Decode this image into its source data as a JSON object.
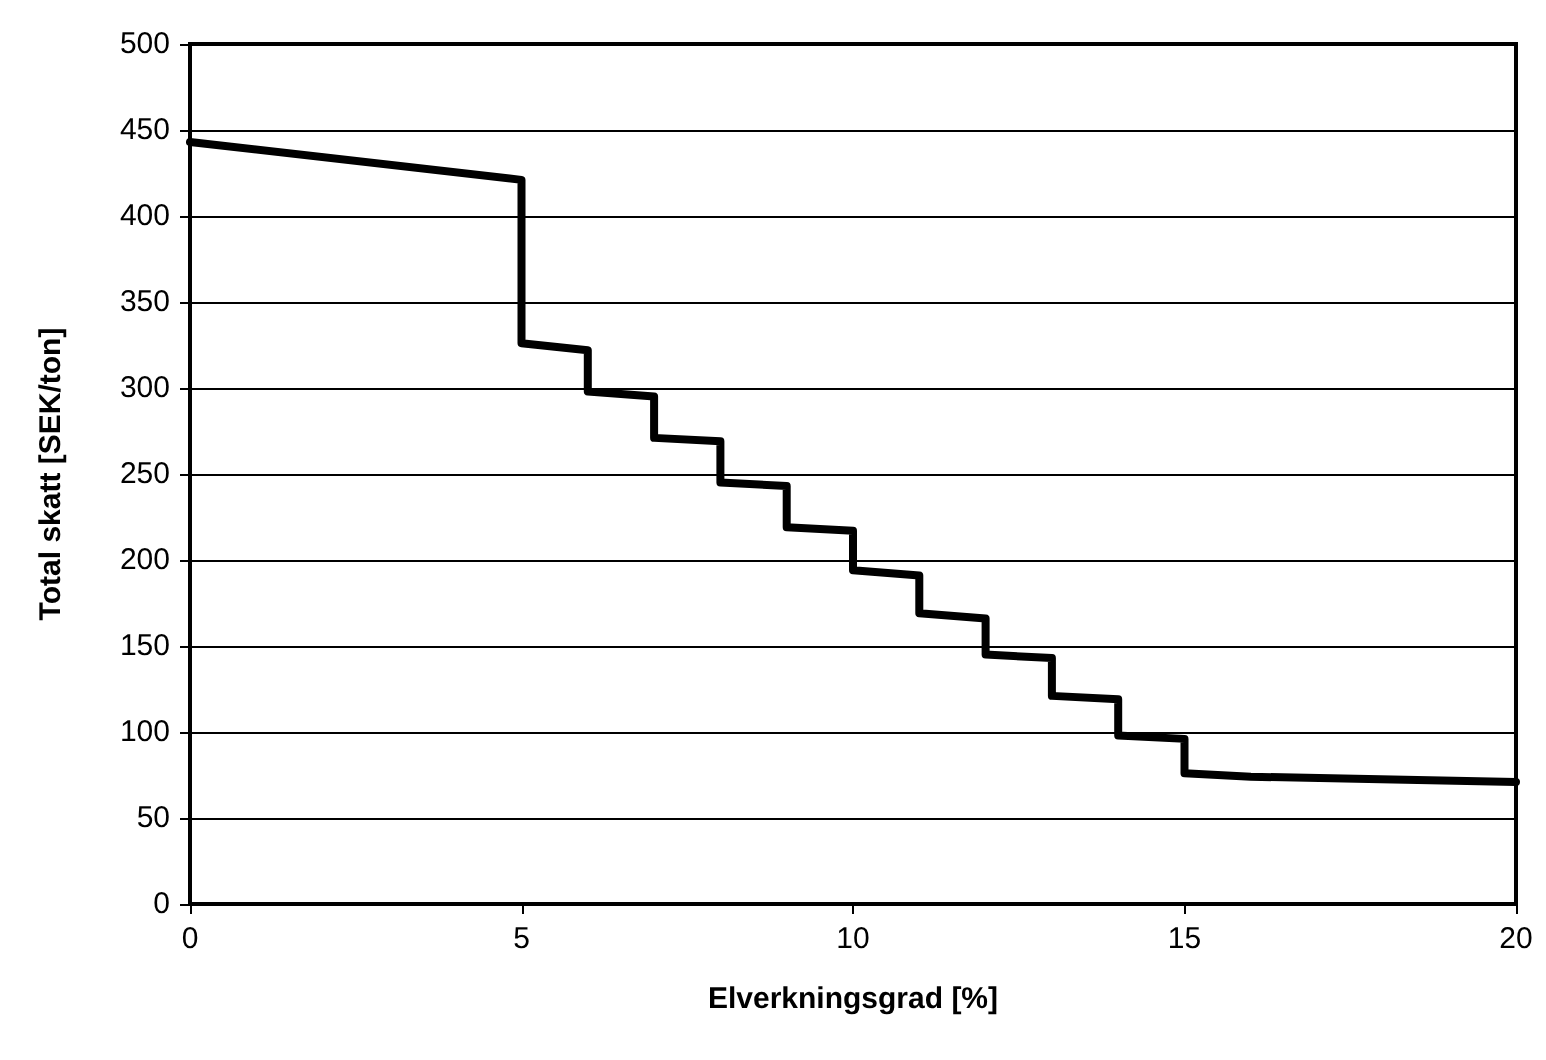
{
  "chart_data": {
    "type": "line",
    "xlabel": "Elverkningsgrad [%]",
    "ylabel": "Total skatt [SEK/ton]",
    "x": [
      0,
      5,
      5,
      6,
      6,
      7,
      7,
      8,
      8,
      9,
      9,
      10,
      10,
      11,
      11,
      12,
      12,
      13,
      13,
      14,
      14,
      15,
      15,
      16,
      20
    ],
    "series": [
      {
        "color": "#000000",
        "values": [
          443,
          421,
          326,
          322,
          298,
          295,
          271,
          269,
          245,
          243,
          219,
          217,
          194,
          191,
          169,
          166,
          145,
          143,
          121,
          119,
          98,
          96,
          76,
          74,
          71
        ]
      }
    ],
    "xlim": [
      0,
      20
    ],
    "xticks": [
      0,
      5,
      10,
      15,
      20
    ],
    "ylim": [
      0,
      500
    ],
    "yticks": [
      0,
      50,
      100,
      150,
      200,
      250,
      300,
      350,
      400,
      450,
      500
    ],
    "grid": "y",
    "marker": "none",
    "line_style": "solid"
  }
}
